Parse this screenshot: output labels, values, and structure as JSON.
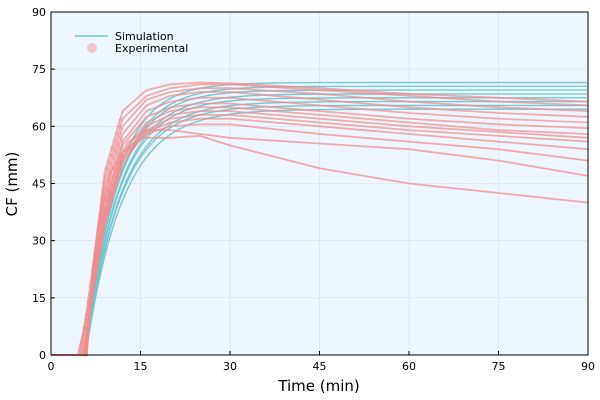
{
  "chart_data": {
    "type": "line",
    "xlabel": "Time (min)",
    "ylabel": "CF (mm)",
    "xlim": [
      0,
      90
    ],
    "ylim": [
      0,
      90
    ],
    "x_ticks": [
      "0",
      "15",
      "30",
      "45",
      "60",
      "75",
      "90"
    ],
    "y_ticks": [
      "0",
      "15",
      "30",
      "45",
      "60",
      "75",
      "90"
    ],
    "grid": true,
    "legend_position": "top-left",
    "colors": {
      "simulation": "#6CC5D0",
      "experimental": "#F08C8C",
      "plot_background": "#EEF6FF"
    },
    "legend": [
      {
        "label": "Simulation",
        "kind": "line"
      },
      {
        "label": "Experimental",
        "kind": "marker"
      }
    ],
    "series": [
      {
        "group": "simulation",
        "t0": 5.8,
        "plateau": 71.5,
        "rate": 0.2
      },
      {
        "group": "simulation",
        "t0": 5.8,
        "plateau": 70.5,
        "rate": 0.19
      },
      {
        "group": "simulation",
        "t0": 5.8,
        "plateau": 69.5,
        "rate": 0.19
      },
      {
        "group": "simulation",
        "t0": 5.8,
        "plateau": 68.5,
        "rate": 0.18
      },
      {
        "group": "simulation",
        "t0": 5.8,
        "plateau": 67.5,
        "rate": 0.18
      },
      {
        "group": "simulation",
        "t0": 5.8,
        "plateau": 66.5,
        "rate": 0.17
      },
      {
        "group": "simulation",
        "t0": 5.8,
        "plateau": 65.5,
        "rate": 0.17
      },
      {
        "group": "simulation",
        "t0": 5.8,
        "plateau": 64.5,
        "rate": 0.16
      },
      {
        "group": "experimental",
        "t0": 4.5,
        "points": [
          [
            4.5,
            0
          ],
          [
            6,
            10
          ],
          [
            8,
            30
          ],
          [
            10,
            45
          ],
          [
            12,
            53
          ],
          [
            15,
            57
          ],
          [
            20,
            57
          ],
          [
            25,
            57.5
          ],
          [
            28,
            56
          ],
          [
            30,
            55
          ],
          [
            35,
            53
          ],
          [
            45,
            49
          ],
          [
            60,
            45
          ],
          [
            75,
            42.5
          ],
          [
            90,
            40
          ]
        ]
      },
      {
        "group": "experimental",
        "t0": 4.8,
        "points": [
          [
            4.8,
            0
          ],
          [
            6,
            12
          ],
          [
            8,
            34
          ],
          [
            10,
            48
          ],
          [
            13,
            56
          ],
          [
            16,
            59
          ],
          [
            20,
            59
          ],
          [
            25,
            58
          ],
          [
            30,
            57
          ],
          [
            40,
            56
          ],
          [
            50,
            55
          ],
          [
            60,
            54
          ],
          [
            75,
            51
          ],
          [
            90,
            47
          ]
        ]
      },
      {
        "group": "experimental",
        "t0": 5.0,
        "points": [
          [
            5,
            0
          ],
          [
            7,
            20
          ],
          [
            9,
            38
          ],
          [
            12,
            52
          ],
          [
            16,
            58
          ],
          [
            20,
            60
          ],
          [
            25,
            60.5
          ],
          [
            30,
            60.5
          ],
          [
            45,
            58
          ],
          [
            60,
            56
          ],
          [
            75,
            54
          ],
          [
            90,
            51
          ]
        ]
      },
      {
        "group": "experimental",
        "t0": 5.2,
        "points": [
          [
            5.2,
            0
          ],
          [
            7,
            18
          ],
          [
            9,
            36
          ],
          [
            12,
            51
          ],
          [
            16,
            58.5
          ],
          [
            20,
            61
          ],
          [
            25,
            62
          ],
          [
            30,
            62
          ],
          [
            45,
            60
          ],
          [
            60,
            58
          ],
          [
            75,
            56
          ],
          [
            90,
            54
          ]
        ]
      },
      {
        "group": "experimental",
        "t0": 5.4,
        "points": [
          [
            5.4,
            0
          ],
          [
            7,
            16
          ],
          [
            9,
            34
          ],
          [
            12,
            50
          ],
          [
            16,
            59
          ],
          [
            20,
            62
          ],
          [
            25,
            63
          ],
          [
            30,
            63
          ],
          [
            45,
            61
          ],
          [
            60,
            59
          ],
          [
            75,
            57.5
          ],
          [
            90,
            56
          ]
        ]
      },
      {
        "group": "experimental",
        "t0": 5.5,
        "points": [
          [
            5.5,
            0
          ],
          [
            7,
            16
          ],
          [
            9,
            35
          ],
          [
            12,
            52
          ],
          [
            16,
            60
          ],
          [
            20,
            63
          ],
          [
            25,
            64
          ],
          [
            30,
            64
          ],
          [
            45,
            62
          ],
          [
            60,
            60
          ],
          [
            75,
            58.5
          ],
          [
            90,
            57
          ]
        ]
      },
      {
        "group": "experimental",
        "t0": 5.6,
        "points": [
          [
            5.6,
            0
          ],
          [
            7,
            17
          ],
          [
            9,
            36
          ],
          [
            12,
            53
          ],
          [
            16,
            61
          ],
          [
            20,
            64
          ],
          [
            25,
            65
          ],
          [
            30,
            65
          ],
          [
            45,
            63
          ],
          [
            60,
            61
          ],
          [
            75,
            59
          ],
          [
            90,
            58
          ]
        ]
      },
      {
        "group": "experimental",
        "t0": 5.6,
        "points": [
          [
            5.6,
            0
          ],
          [
            7,
            18
          ],
          [
            9,
            38
          ],
          [
            12,
            55
          ],
          [
            16,
            62.5
          ],
          [
            20,
            65
          ],
          [
            25,
            66
          ],
          [
            30,
            66
          ],
          [
            45,
            64
          ],
          [
            60,
            62
          ],
          [
            75,
            60.5
          ],
          [
            90,
            59.5
          ]
        ]
      },
      {
        "group": "experimental",
        "t0": 5.7,
        "points": [
          [
            5.7,
            0
          ],
          [
            7,
            19
          ],
          [
            9,
            40
          ],
          [
            12,
            56
          ],
          [
            16,
            64
          ],
          [
            20,
            66.5
          ],
          [
            25,
            67.5
          ],
          [
            30,
            67.5
          ],
          [
            45,
            65.5
          ],
          [
            60,
            63.5
          ],
          [
            75,
            62
          ],
          [
            90,
            61
          ]
        ]
      },
      {
        "group": "experimental",
        "t0": 5.8,
        "points": [
          [
            5.8,
            0
          ],
          [
            7,
            20
          ],
          [
            9,
            42
          ],
          [
            12,
            58
          ],
          [
            16,
            65.5
          ],
          [
            20,
            68
          ],
          [
            25,
            69
          ],
          [
            30,
            69
          ],
          [
            45,
            67
          ],
          [
            60,
            65
          ],
          [
            75,
            63.5
          ],
          [
            90,
            62.5
          ]
        ]
      },
      {
        "group": "experimental",
        "t0": 5.9,
        "points": [
          [
            5.9,
            0
          ],
          [
            7,
            21
          ],
          [
            9,
            44
          ],
          [
            12,
            60
          ],
          [
            16,
            67
          ],
          [
            20,
            69
          ],
          [
            25,
            70
          ],
          [
            30,
            70
          ],
          [
            45,
            68.5
          ],
          [
            60,
            66.5
          ],
          [
            75,
            65
          ],
          [
            90,
            64
          ]
        ]
      },
      {
        "group": "experimental",
        "t0": 6.0,
        "points": [
          [
            6,
            0
          ],
          [
            7,
            22
          ],
          [
            9,
            46
          ],
          [
            12,
            62
          ],
          [
            16,
            68
          ],
          [
            20,
            70
          ],
          [
            25,
            71
          ],
          [
            30,
            71
          ],
          [
            45,
            69.5
          ],
          [
            60,
            68
          ],
          [
            75,
            66.5
          ],
          [
            90,
            65.5
          ]
        ]
      },
      {
        "group": "experimental",
        "t0": 6.0,
        "points": [
          [
            6,
            0
          ],
          [
            7,
            23
          ],
          [
            9,
            48
          ],
          [
            12,
            64
          ],
          [
            16,
            69.5
          ],
          [
            20,
            71
          ],
          [
            25,
            71.5
          ],
          [
            30,
            71.3
          ],
          [
            45,
            70
          ],
          [
            60,
            68.5
          ],
          [
            75,
            67.5
          ],
          [
            90,
            66.5
          ]
        ]
      }
    ]
  }
}
